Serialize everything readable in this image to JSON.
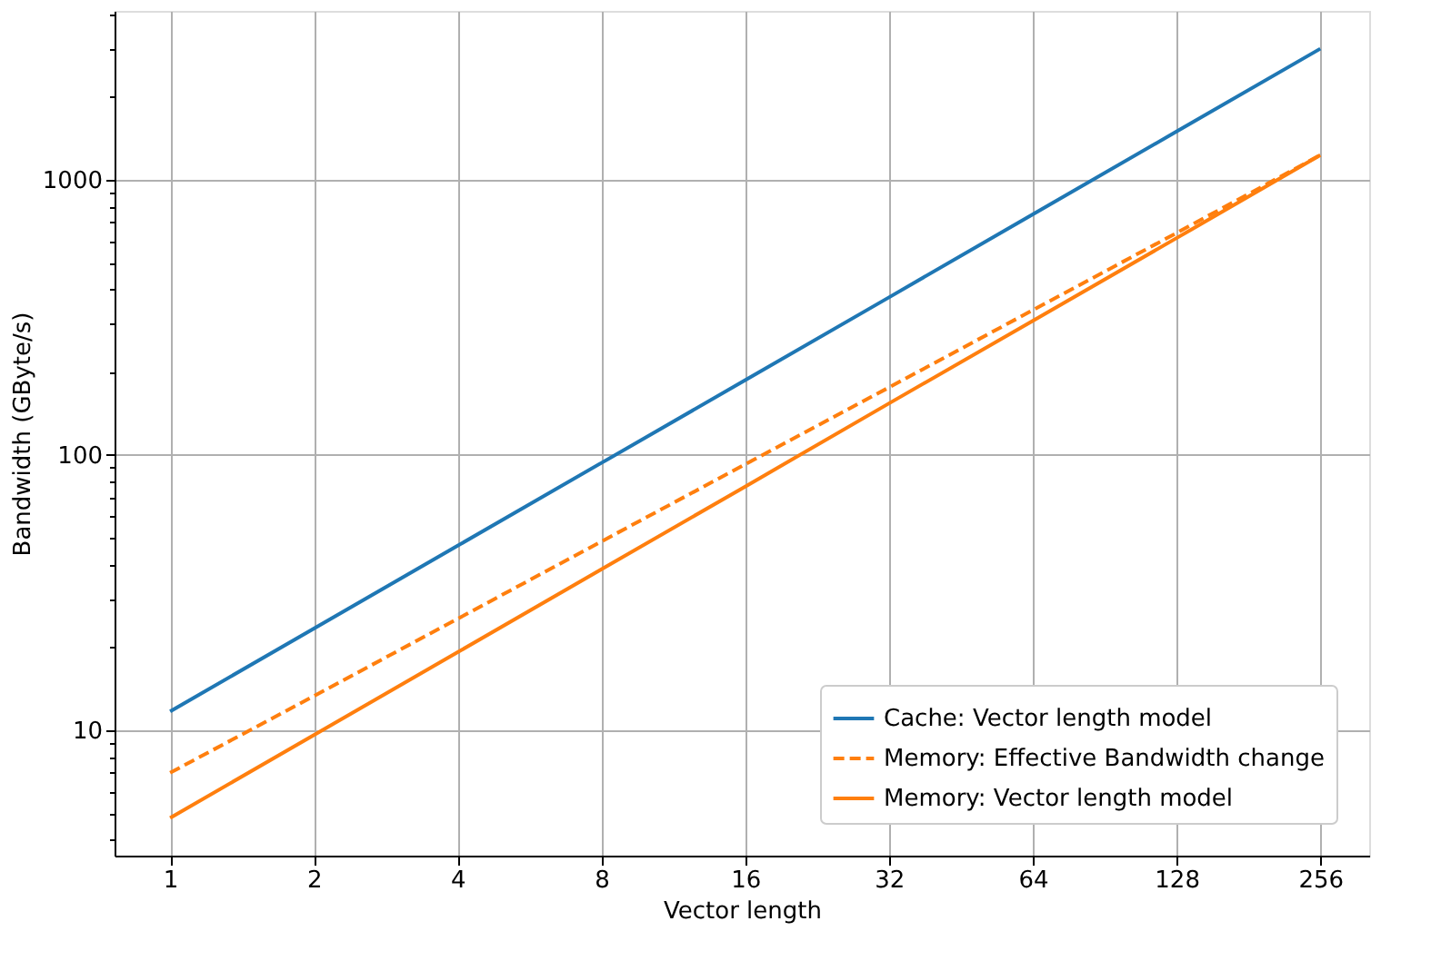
{
  "chart_data": {
    "type": "line",
    "xlabel": "Vector length",
    "ylabel": "Bandwidth (GByte/s)",
    "log": "xy",
    "grid": true,
    "legend": "bottom right",
    "marker": "none",
    "x": [
      1,
      2,
      4,
      8,
      16,
      32,
      64,
      128,
      256
    ],
    "xlim": [
      0.765,
      324
    ],
    "xticks": [
      1,
      2,
      4,
      8,
      16,
      32,
      64,
      128,
      256
    ],
    "ylim": [
      3.5,
      4110
    ],
    "yticks": [
      {
        "value": 4,
        "label": null
      },
      {
        "value": 5,
        "label": null
      },
      {
        "value": 6,
        "label": null
      },
      {
        "value": 7,
        "label": null
      },
      {
        "value": 8,
        "label": null
      },
      {
        "value": 9,
        "label": null
      },
      10,
      {
        "value": 20,
        "label": null
      },
      {
        "value": 30,
        "label": null
      },
      {
        "value": 40,
        "label": null
      },
      {
        "value": 50,
        "label": null
      },
      {
        "value": 60,
        "label": null
      },
      {
        "value": 70,
        "label": null
      },
      {
        "value": 80,
        "label": null
      },
      {
        "value": 90,
        "label": null
      },
      100,
      {
        "value": 200,
        "label": null
      },
      {
        "value": 300,
        "label": null
      },
      {
        "value": 400,
        "label": null
      },
      {
        "value": 500,
        "label": null
      },
      {
        "value": 600,
        "label": null
      },
      {
        "value": 700,
        "label": null
      },
      {
        "value": 800,
        "label": null
      },
      {
        "value": 900,
        "label": null
      },
      1000,
      {
        "value": 2000,
        "label": null
      },
      {
        "value": 3000,
        "label": null
      },
      {
        "value": 4000,
        "label": null
      }
    ],
    "series": [
      {
        "name": "Cache: Vector length model",
        "color": "#1f77b4",
        "line_style": "solid",
        "values": [
          11.7,
          23.4,
          46.8,
          93.6,
          187,
          374,
          749,
          1498,
          2995
        ]
      },
      {
        "name": "Memory: Effective Bandwidth change",
        "color": "#ff7f0e",
        "line_style": "dashed",
        "values": [
          7.0,
          13.3,
          25.4,
          48.5,
          92.5,
          176,
          336,
          641,
          1230
        ]
      },
      {
        "name": "Memory: Vector length model",
        "color": "#ff7f0e",
        "line_style": "solid",
        "values": [
          4.8,
          9.6,
          19.2,
          38.4,
          76.8,
          154,
          307,
          614,
          1229
        ]
      }
    ]
  }
}
